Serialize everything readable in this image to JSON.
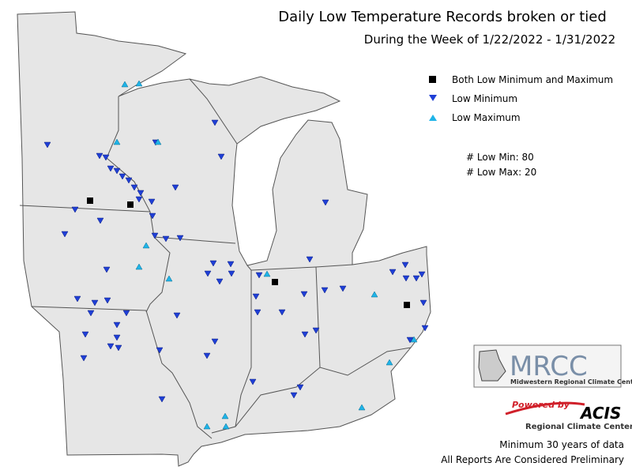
{
  "header": {
    "title": "Daily Low Temperature Records broken or tied",
    "subtitle": "During the Week of 1/22/2022 - 1/31/2022"
  },
  "legend": {
    "items": [
      "Both Low Minimum and Maximum",
      "Low Minimum",
      "Low Maximum"
    ]
  },
  "stats": [
    "# Low Min: 80",
    "# Low Max: 20"
  ],
  "logos": {
    "mrcc": "MRCC",
    "mrcc_name": "Midwestern Regional Climate Center",
    "powered": "Powered by",
    "acis": "ACIS",
    "acis_name": "Regional Climate Centers"
  },
  "footer": [
    "Minimum 30 years of data",
    "All Reports Are Considered Preliminary"
  ]
}
